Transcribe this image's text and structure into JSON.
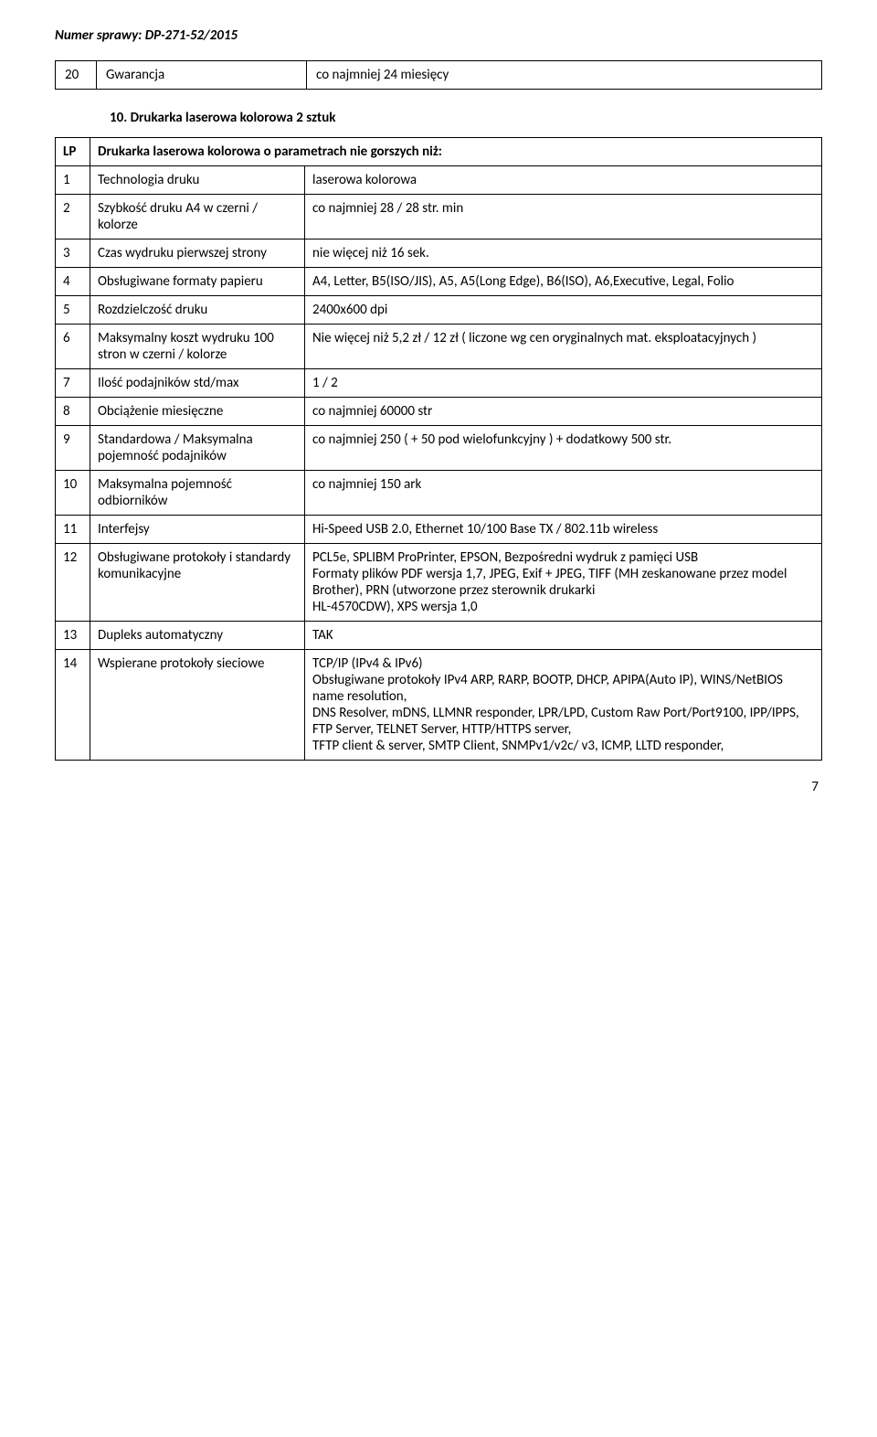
{
  "header": {
    "case_number": "Numer sprawy: DP-271-52/2015"
  },
  "warranty_table": {
    "num": "20",
    "label": "Gwarancja",
    "value": "co najmniej 24 miesięcy"
  },
  "section_title": "10. Drukarka laserowa kolorowa 2 sztuk",
  "spec_header": {
    "lp": "LP",
    "desc": "Drukarka laserowa kolorowa o parametrach nie gorszych niż:"
  },
  "rows": [
    {
      "num": "1",
      "param": "Technologia druku",
      "value": "laserowa kolorowa"
    },
    {
      "num": "2",
      "param": "Szybkość druku A4 w czerni / kolorze",
      "value": "co najmniej 28 / 28 str. min"
    },
    {
      "num": "3",
      "param": "Czas wydruku pierwszej strony",
      "value": "nie więcej niż 16 sek."
    },
    {
      "num": "4",
      "param": "Obsługiwane formaty papieru",
      "value": "A4, Letter, B5(ISO/JIS), A5, A5(Long Edge), B6(ISO), A6,Executive, Legal, Folio"
    },
    {
      "num": "5",
      "param": "Rozdzielczość druku",
      "value": "2400x600 dpi"
    },
    {
      "num": "6",
      "param": "Maksymalny koszt wydruku 100 stron w czerni / kolorze",
      "value": "Nie więcej niż 5,2 zł / 12 zł ( liczone wg cen oryginalnych mat. eksploatacyjnych )"
    },
    {
      "num": "7",
      "param": "Ilość podajników std/max",
      "value": "1 / 2"
    },
    {
      "num": "8",
      "param": "Obciążenie miesięczne",
      "value": "co najmniej 60000 str"
    },
    {
      "num": "9",
      "param": "Standardowa / Maksymalna pojemność podajników",
      "value": "co najmniej 250 ( + 50 pod wielofunkcyjny ) + dodatkowy 500 str."
    },
    {
      "num": "10",
      "param": "Maksymalna pojemność odbiorników",
      "value": "co najmniej 150 ark"
    },
    {
      "num": "11",
      "param": "Interfejsy",
      "value": "Hi-Speed USB 2.0, Ethernet 10/100 Base TX / 802.11b wireless"
    },
    {
      "num": "12",
      "param": "Obsługiwane protokoły i standardy komunikacyjne",
      "value": "PCL5e, SPLIBM ProPrinter, EPSON, Bezpośredni wydruk z pamięci USB\nFormaty plików PDF wersja 1,7, JPEG, Exif + JPEG, TIFF (MH zeskanowane przez model Brother), PRN (utworzone przez sterownik drukarki\nHL-4570CDW), XPS wersja 1,0"
    },
    {
      "num": "13",
      "param": "Dupleks automatyczny",
      "value": "TAK"
    },
    {
      "num": "14",
      "param": "Wspierane protokoły sieciowe",
      "value": "TCP/IP (IPv4 & IPv6)\nObsługiwane protokoły IPv4 ARP, RARP, BOOTP, DHCP, APIPA(Auto IP), WINS/NetBIOS name resolution,\nDNS Resolver, mDNS, LLMNR responder, LPR/LPD, Custom Raw Port/Port9100, IPP/IPPS, FTP Server, TELNET Server, HTTP/HTTPS server,\nTFTP client & server, SMTP Client, SNMPv1/v2c/ v3, ICMP, LLTD responder,"
    }
  ],
  "page_number": "7"
}
